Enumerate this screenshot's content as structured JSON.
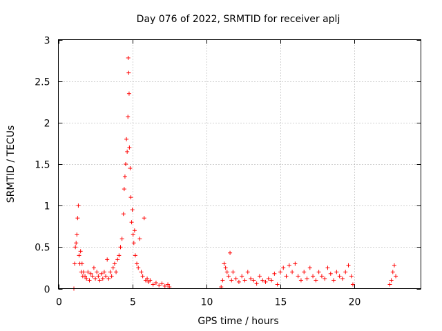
{
  "chart_data": {
    "type": "scatter",
    "title": "Day 076 of 2022, SRMTID for receiver aplj",
    "xlabel": "GPS time / hours",
    "ylabel": "SRMTID / TECUs",
    "xlim": [
      0,
      24.5
    ],
    "ylim": [
      0,
      3
    ],
    "xticks": [
      0,
      5,
      10,
      15,
      20
    ],
    "yticks": [
      0,
      0.5,
      1,
      1.5,
      2,
      2.5,
      3
    ],
    "xtick_labels": [
      "0",
      "5",
      "10",
      "15",
      "20"
    ],
    "ytick_labels": [
      "0",
      "0.5",
      "1",
      "1.5",
      "2",
      "2.5",
      "3"
    ],
    "grid": true,
    "marker": "+",
    "color": "#ff0000",
    "series": [
      {
        "name": "SRMTID",
        "x": [
          1.05,
          1.1,
          1.15,
          1.2,
          1.25,
          1.3,
          1.35,
          1.4,
          1.45,
          1.5,
          1.55,
          1.6,
          1.65,
          1.7,
          1.8,
          1.9,
          2.0,
          2.1,
          2.2,
          2.3,
          2.4,
          2.5,
          2.6,
          2.7,
          2.8,
          2.9,
          3.0,
          3.1,
          3.2,
          3.3,
          3.4,
          3.5,
          3.6,
          3.7,
          3.8,
          3.9,
          4.0,
          4.1,
          4.2,
          4.3,
          4.4,
          4.45,
          4.5,
          4.55,
          4.6,
          4.65,
          4.7,
          4.72,
          4.75,
          4.78,
          4.8,
          4.85,
          4.9,
          4.95,
          5.0,
          5.05,
          5.1,
          5.15,
          5.2,
          5.3,
          5.4,
          5.5,
          5.6,
          5.7,
          5.8,
          5.9,
          6.0,
          6.1,
          6.2,
          6.4,
          6.6,
          6.8,
          7.0,
          7.2,
          7.4,
          7.5,
          11.0,
          11.1,
          11.2,
          11.3,
          11.4,
          11.5,
          11.6,
          11.7,
          11.8,
          12.0,
          12.2,
          12.4,
          12.6,
          12.8,
          13.0,
          13.2,
          13.4,
          13.6,
          13.8,
          14.0,
          14.2,
          14.4,
          14.6,
          14.8,
          15.0,
          15.2,
          15.4,
          15.6,
          15.8,
          16.0,
          16.2,
          16.4,
          16.6,
          16.8,
          17.0,
          17.2,
          17.4,
          17.6,
          17.8,
          18.0,
          18.2,
          18.4,
          18.6,
          18.8,
          19.0,
          19.2,
          19.4,
          19.6,
          19.8,
          19.9,
          22.4,
          22.5,
          22.6,
          22.7,
          22.8
        ],
        "y": [
          0.0,
          0.3,
          0.5,
          0.55,
          0.65,
          0.85,
          1.0,
          0.4,
          0.3,
          0.45,
          0.2,
          0.3,
          0.15,
          0.2,
          0.15,
          0.12,
          0.2,
          0.1,
          0.18,
          0.15,
          0.25,
          0.12,
          0.2,
          0.15,
          0.1,
          0.18,
          0.12,
          0.2,
          0.15,
          0.35,
          0.12,
          0.2,
          0.15,
          0.25,
          0.3,
          0.2,
          0.35,
          0.4,
          0.5,
          0.6,
          0.9,
          1.2,
          1.35,
          1.5,
          1.8,
          1.65,
          2.07,
          2.78,
          2.6,
          2.35,
          1.7,
          1.45,
          1.1,
          0.8,
          0.95,
          0.65,
          0.55,
          0.7,
          0.4,
          0.3,
          0.25,
          0.6,
          0.2,
          0.15,
          0.85,
          0.1,
          0.12,
          0.08,
          0.1,
          0.05,
          0.07,
          0.04,
          0.06,
          0.03,
          0.05,
          0.02,
          0.02,
          0.1,
          0.3,
          0.25,
          0.2,
          0.15,
          0.43,
          0.1,
          0.2,
          0.12,
          0.08,
          0.15,
          0.1,
          0.2,
          0.12,
          0.1,
          0.06,
          0.15,
          0.1,
          0.08,
          0.12,
          0.1,
          0.18,
          0.05,
          0.2,
          0.25,
          0.15,
          0.28,
          0.2,
          0.3,
          0.15,
          0.1,
          0.2,
          0.12,
          0.25,
          0.15,
          0.1,
          0.2,
          0.15,
          0.12,
          0.25,
          0.18,
          0.1,
          0.2,
          0.15,
          0.12,
          0.2,
          0.28,
          0.15,
          0.05,
          0.05,
          0.1,
          0.2,
          0.28,
          0.15
        ]
      }
    ]
  }
}
